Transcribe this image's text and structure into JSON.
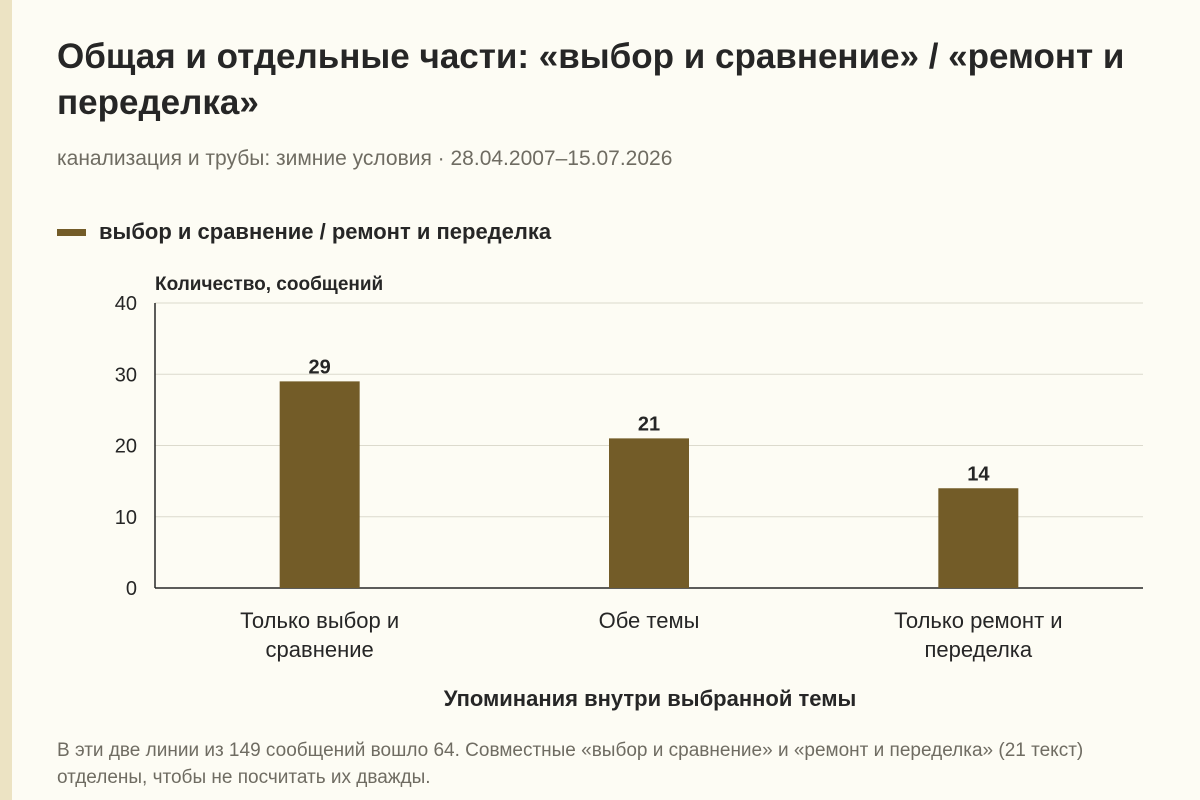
{
  "title": "Общая и отдельные части: «выбор и сравнение» / «ремонт и переделка»",
  "subtitle": "канализация и трубы: зимние условия · 28.04.2007–15.07.2026",
  "footnote": "В эти две линии из 149 сообщений вошло 64. Совместные «выбор и сравнение» и «ремонт и переделка» (21 текст) отделены, чтобы не посчитать их дважды.",
  "colors": {
    "bar": "#735c28",
    "grid": "#dcdacd",
    "axis": "#262626",
    "background": "#fdfcf4"
  },
  "chart_data": {
    "type": "bar",
    "categories": [
      [
        "Только выбор и",
        "сравнение"
      ],
      [
        "Обе темы"
      ],
      [
        "Только ремонт и",
        "переделка"
      ]
    ],
    "series": [
      {
        "name": "выбор и сравнение / ремонт и переделка",
        "values": [
          29,
          21,
          14
        ]
      }
    ],
    "ylabel": "Количество, сообщений",
    "xlabel": "Упоминания внутри выбранной темы",
    "ylim": [
      0,
      40
    ],
    "yticks": [
      0,
      10,
      20,
      30,
      40
    ],
    "grid": true,
    "legend": "top-left",
    "data_labels": true
  }
}
